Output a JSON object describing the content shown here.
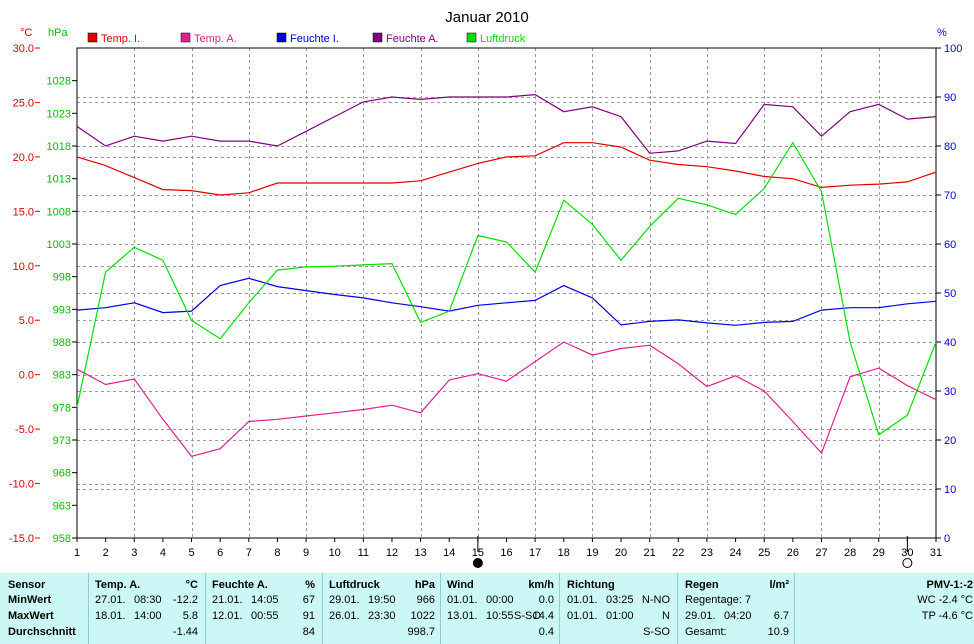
{
  "chart_data": {
    "type": "line",
    "title": "Januar 2010",
    "left_axis": {
      "unit": "°C",
      "range": [
        -15,
        30
      ],
      "ticks": [
        "30.0",
        "25.0",
        "20.0",
        "15.0",
        "10.0",
        "5.0",
        "0.0",
        "-5.0",
        "-10.0",
        "-15.0"
      ]
    },
    "pressure_axis": {
      "unit": "hPa",
      "range": [
        958,
        1033
      ],
      "ticks": [
        "1028",
        "1023",
        "1018",
        "1013",
        "1008",
        "1003",
        "998",
        "993",
        "988",
        "983",
        "978",
        "973",
        "968",
        "963",
        "958"
      ]
    },
    "right_axis": {
      "unit": "%",
      "range": [
        0,
        100
      ],
      "ticks": [
        "100",
        "90",
        "80",
        "70",
        "60",
        "50",
        "40",
        "30",
        "20",
        "10",
        "0"
      ]
    },
    "x": [
      1,
      2,
      3,
      4,
      5,
      6,
      7,
      8,
      9,
      10,
      11,
      12,
      13,
      14,
      15,
      16,
      17,
      18,
      19,
      20,
      21,
      22,
      23,
      24,
      25,
      26,
      27,
      28,
      29,
      30,
      31
    ],
    "x_ticks": [
      "1",
      "2",
      "3",
      "4",
      "5",
      "6",
      "7",
      "8",
      "9",
      "10",
      "11",
      "12",
      "13",
      "14",
      "15",
      "16",
      "17",
      "18",
      "19",
      "20",
      "21",
      "22",
      "23",
      "24",
      "25",
      "26",
      "27",
      "28",
      "29",
      "30",
      "31"
    ],
    "grid": true,
    "series": [
      {
        "name": "Temp. I.",
        "color": "#e00000",
        "axis": "temp",
        "values": [
          20.0,
          19.2,
          18.1,
          17.0,
          16.9,
          16.5,
          16.7,
          17.6,
          17.6,
          17.6,
          17.6,
          17.6,
          17.8,
          18.6,
          19.4,
          20.0,
          20.1,
          21.3,
          21.3,
          20.9,
          19.7,
          19.3,
          19.1,
          18.7,
          18.2,
          18.0,
          17.2,
          17.4,
          17.5,
          17.7,
          18.6
        ]
      },
      {
        "name": "Temp. A.",
        "color": "#e02090",
        "axis": "temp",
        "values": [
          0.5,
          -0.9,
          -0.4,
          -4.1,
          -7.5,
          -6.8,
          -4.3,
          -4.1,
          -3.8,
          -3.5,
          -3.2,
          -2.8,
          -3.5,
          -0.5,
          0.1,
          -0.6,
          1.2,
          3.0,
          1.8,
          2.4,
          2.7,
          1.0,
          -1.1,
          -0.1,
          -1.5,
          -4.3,
          -7.2,
          -0.2,
          0.6,
          -1.0,
          -2.3
        ]
      },
      {
        "name": "Feuchte I.",
        "color": "#0000e0",
        "axis": "humidity",
        "values": [
          46.5,
          47.0,
          48.0,
          46.0,
          46.3,
          51.5,
          53.0,
          51.3,
          50.5,
          49.7,
          49.0,
          48.0,
          47.2,
          46.3,
          47.5,
          48.0,
          48.5,
          51.5,
          49.0,
          43.5,
          44.2,
          44.5,
          43.9,
          43.4,
          44.0,
          44.2,
          46.5,
          47.0,
          47.0,
          47.8,
          48.3
        ]
      },
      {
        "name": "Feuchte A.",
        "color": "#800080",
        "axis": "humidity",
        "values": [
          84,
          80,
          82,
          81,
          82,
          81,
          81,
          80,
          83,
          86,
          89,
          90,
          89.5,
          90,
          90,
          90,
          90.5,
          87,
          88,
          86,
          78.5,
          79,
          81,
          80.5,
          88.5,
          88,
          82,
          87,
          88.5,
          85.5,
          86
        ]
      },
      {
        "name": "Luftdruck",
        "color": "#00e000",
        "axis": "pressure",
        "values": [
          978.0,
          998.7,
          1002.5,
          1000.5,
          991.3,
          988.5,
          994.0,
          999.0,
          999.5,
          999.6,
          999.8,
          1000.0,
          991.0,
          992.7,
          1004.3,
          1003.3,
          998.7,
          1009.7,
          1006.0,
          1000.5,
          1005.7,
          1010.0,
          1009.0,
          1007.5,
          1011.5,
          1018.5,
          1011.0,
          988.0,
          973.8,
          976.8,
          988.0
        ]
      }
    ],
    "markers": {
      "full_moon": 15,
      "new_moon": 30
    }
  },
  "stats": {
    "sensor": {
      "header": "Sensor",
      "min": "MinWert",
      "max": "MaxWert",
      "avg": "Durchschnitt"
    },
    "temp": {
      "header": "Temp. A.",
      "unit": "°C",
      "min_date": "27.01.",
      "min_time": "08:30",
      "min_val": "-12.2",
      "max_date": "18.01.",
      "max_time": "14:00",
      "max_val": "5.8",
      "avg_val": "-1.44"
    },
    "feuchte": {
      "header": "Feuchte A.",
      "unit": "%",
      "min_date": "21.01.",
      "min_time": "14:05",
      "min_val": "67",
      "max_date": "12.01.",
      "max_time": "00:55",
      "max_val": "91",
      "avg_val": "84"
    },
    "luftdruck": {
      "header": "Luftdruck",
      "unit": "hPa",
      "min_date": "29.01.",
      "min_time": "19:50",
      "min_val": "966",
      "max_date": "26.01.",
      "max_time": "23:30",
      "max_val": "1022",
      "avg_val": "998.7"
    },
    "wind": {
      "header": "Wind",
      "unit": "km/h",
      "min_date": "01.01.",
      "min_time": "00:00",
      "min_val": "0.0",
      "max_date": "13.01.",
      "max_time": "10:55",
      "max_dir": "S-SO",
      "max_val": "14.4",
      "avg_val": "0.4"
    },
    "richtung": {
      "header": "Richtung",
      "min_date": "01.01.",
      "min_time": "03:25",
      "min_val": "N-NO",
      "max_date": "01.01.",
      "max_time": "01:00",
      "max_val": "N",
      "avg_val": "S-SO"
    },
    "regen": {
      "header": "Regen",
      "unit": "l/m²",
      "tage": "Regentage: 7",
      "max_date": "29.01.",
      "max_time": "04:20",
      "max_val": "6.7",
      "gesamt_label": "Gesamt:",
      "gesamt_val": "10.9"
    },
    "pmv": {
      "header": "PMV-1:-2",
      "wc": "WC -2.4 °C",
      "tp": "TP -4.6 °C"
    }
  }
}
